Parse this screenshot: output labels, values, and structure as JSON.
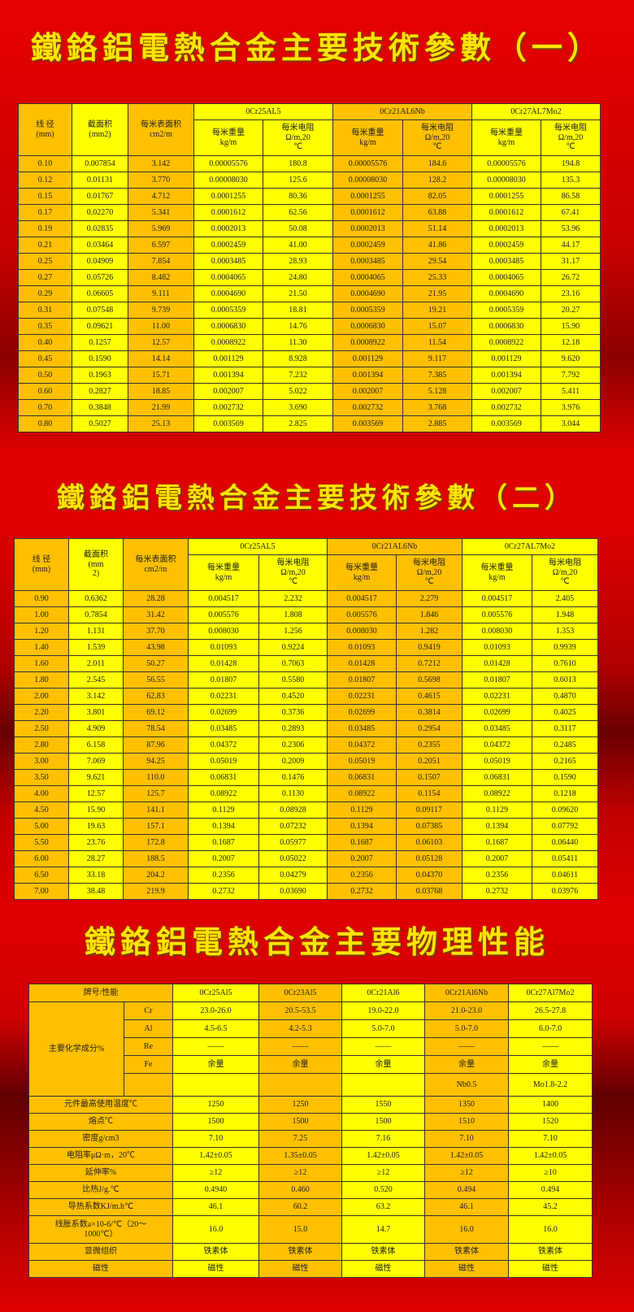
{
  "titles": [
    "鐵鉻鋁電熱合金主要技術參數（一）",
    "鐵鉻鋁電熱合金主要技術參數（二）",
    "鐵鉻鋁電熱合金主要物理性能"
  ],
  "colors": {
    "orange": "#ffc000",
    "yellow": "#ffff00",
    "title": "#ffe400",
    "background": "#e00000"
  },
  "table1": {
    "head": [
      "线 径\n(mm)",
      "截面积\n(mm2)",
      "每米表面积\ncm2/m"
    ],
    "groups": [
      "0Cr25AL5",
      "0Cr21AL6Nb",
      "0Cr27AL7Mo2"
    ],
    "sub": [
      "每米重量\nkg/m",
      "每米电阻\nΩ/m,20\n℃"
    ],
    "rows": [
      [
        "0.10",
        "0.007854",
        "3.142",
        "0.00005576",
        "180.8",
        "0.00005576",
        "184.6",
        "0.00005576",
        "194.8"
      ],
      [
        "0.12",
        "0.01131",
        "3.770",
        "0.00008030",
        "125.6",
        "0.00008030",
        "128.2",
        "0.00008030",
        "135.3"
      ],
      [
        "0.15",
        "0.01767",
        "4.712",
        "0.0001255",
        "80.36",
        "0.0001255",
        "82.05",
        "0.0001255",
        "86.58"
      ],
      [
        "0.17",
        "0.02270",
        "5.341",
        "0.0001612",
        "62.56",
        "0.0001612",
        "63.88",
        "0.0001612",
        "67.41"
      ],
      [
        "0.19",
        "0.02835",
        "5.969",
        "0.0002013",
        "50.08",
        "0.0002013",
        "51.14",
        "0.0002013",
        "53.96"
      ],
      [
        "0.21",
        "0.03464",
        "6.597",
        "0.0002459",
        "41.00",
        "0.0002459",
        "41.86",
        "0.0002459",
        "44.17"
      ],
      [
        "0.25",
        "0.04909",
        "7.854",
        "0.0003485",
        "28.93",
        "0.0003485",
        "29.54",
        "0.0003485",
        "31.17"
      ],
      [
        "0.27",
        "0.05726",
        "8.482",
        "0.0004065",
        "24.80",
        "0.0004065",
        "25.33",
        "0.0004065",
        "26.72"
      ],
      [
        "0.29",
        "0.06605",
        "9.111",
        "0.0004690",
        "21.50",
        "0.0004690",
        "21.95",
        "0.0004690",
        "23.16"
      ],
      [
        "0.31",
        "0.07548",
        "9.739",
        "0.0005359",
        "18.81",
        "0.0005359",
        "19.21",
        "0.0005359",
        "20.27"
      ],
      [
        "0.35",
        "0.09621",
        "11.00",
        "0.0006830",
        "14.76",
        "0.0006830",
        "15.07",
        "0.0006830",
        "15.90"
      ],
      [
        "0.40",
        "0.1257",
        "12.57",
        "0.0008922",
        "11.30",
        "0.0008922",
        "11.54",
        "0.0008922",
        "12.18"
      ],
      [
        "0.45",
        "0.1590",
        "14.14",
        "0.001129",
        "8.928",
        "0.001129",
        "9.117",
        "0.001129",
        "9.620"
      ],
      [
        "0.50",
        "0.1963",
        "15.71",
        "0.001394",
        "7.232",
        "0.001394",
        "7.385",
        "0.001394",
        "7.792"
      ],
      [
        "0.60",
        "0.2827",
        "18.85",
        "0.002007",
        "5.022",
        "0.002007",
        "5.128",
        "0.002007",
        "5.411"
      ],
      [
        "0.70",
        "0.3848",
        "21.99",
        "0.002732",
        "3.690",
        "0.002732",
        "3.768",
        "0.002732",
        "3.976"
      ],
      [
        "0.80",
        "0.5027",
        "25.13",
        "0.003569",
        "2.825",
        "0.003569",
        "2.885",
        "0.003569",
        "3.044"
      ]
    ]
  },
  "table2": {
    "head": [
      "线 径\n(mm)",
      "截面积\n(mm\n2)",
      "每米表面积\ncm2/m"
    ],
    "groups": [
      "0Cr25AL5",
      "0Cr21AL6Nb",
      "0Cr27AL7Mo2"
    ],
    "sub": [
      "每米重量\nkg/m",
      "每米电阻\nΩ/m,20\n℃"
    ],
    "rows": [
      [
        "0.90",
        "0.6362",
        "28.28",
        "0.004517",
        "2.232",
        "0.004517",
        "2.279",
        "0.004517",
        "2.405"
      ],
      [
        "1.00",
        "0.7854",
        "31.42",
        "0.005576",
        "1.808",
        "0.005576",
        "1.846",
        "0.005576",
        "1.948"
      ],
      [
        "1.20",
        "1.131",
        "37.70",
        "0.008030",
        "1.256",
        "0.008030",
        "1.282",
        "0.008030",
        "1.353"
      ],
      [
        "1.40",
        "1.539",
        "43.98",
        "0.01093",
        "0.9224",
        "0.01093",
        "0.9419",
        "0.01093",
        "0.9939"
      ],
      [
        "1.60",
        "2.011",
        "50.27",
        "0.01428",
        "0.7063",
        "0.01428",
        "0.7212",
        "0.01428",
        "0.7610"
      ],
      [
        "1.80",
        "2.545",
        "56.55",
        "0.01807",
        "0.5580",
        "0.01807",
        "0.5698",
        "0.01807",
        "0.6013"
      ],
      [
        "2.00",
        "3.142",
        "62.83",
        "0.02231",
        "0.4520",
        "0.02231",
        "0.4615",
        "0.02231",
        "0.4870"
      ],
      [
        "2.20",
        "3.801",
        "69.12",
        "0.02699",
        "0.3736",
        "0.02699",
        "0.3814",
        "0.02699",
        "0.4025"
      ],
      [
        "2.50",
        "4.909",
        "78.54",
        "0.03485",
        "0.2893",
        "0.03485",
        "0.2954",
        "0.03485",
        "0.3117"
      ],
      [
        "2.80",
        "6.158",
        "87.96",
        "0.04372",
        "0.2306",
        "0.04372",
        "0.2355",
        "0.04372",
        "0.2485"
      ],
      [
        "3.00",
        "7.069",
        "94.25",
        "0.05019",
        "0.2009",
        "0.05019",
        "0.2051",
        "0.05019",
        "0.2165"
      ],
      [
        "3.50",
        "9.621",
        "110.0",
        "0.06831",
        "0.1476",
        "0.06831",
        "0.1507",
        "0.06831",
        "0.1590"
      ],
      [
        "4.00",
        "12.57",
        "125.7",
        "0.08922",
        "0.1130",
        "0.08922",
        "0.1154",
        "0.08922",
        "0.1218"
      ],
      [
        "4.50",
        "15.90",
        "141.1",
        "0.1129",
        "0.08928",
        "0.1129",
        "0.09117",
        "0.1129",
        "0.09620"
      ],
      [
        "5.00",
        "19.63",
        "157.1",
        "0.1394",
        "0.07232",
        "0.1394",
        "0.07385",
        "0.1394",
        "0.07792"
      ],
      [
        "5.50",
        "23.76",
        "172.8",
        "0.1687",
        "0.05977",
        "0.1687",
        "0.06103",
        "0.1687",
        "0.06440"
      ],
      [
        "6.00",
        "28.27",
        "188.5",
        "0.2007",
        "0.05022",
        "0.2007",
        "0.05128",
        "0.2007",
        "0.05411"
      ],
      [
        "6.50",
        "33.18",
        "204.2",
        "0.2356",
        "0.04279",
        "0.2356",
        "0.04370",
        "0.2356",
        "0.04611"
      ],
      [
        "7.00",
        "38.48",
        "219.9",
        "0.2732",
        "0.03690",
        "0.2732",
        "0.03768",
        "0.2732",
        "0.03976"
      ]
    ]
  },
  "table3": {
    "corner": "牌号/性能",
    "grades": [
      "0Cr25Al5",
      "0Cr23Al5",
      "0Cr21Al6",
      "0Cr21Al6Nb",
      "0Cr27Al7Mo2"
    ],
    "chem_label": "主要化学成分%",
    "chem_rows": [
      {
        "el": "Cr",
        "v": [
          "23.0-26.0",
          "20.5-53.5",
          "19.0-22.0",
          "21.0-23.0",
          "26.5-27.8"
        ]
      },
      {
        "el": "Al",
        "v": [
          "4.5-6.5",
          "4.2-5.3",
          "5.0-7.0",
          "5.0-7.0",
          "6.0-7.0"
        ]
      },
      {
        "el": "Re",
        "v": [
          "——",
          "——",
          "——",
          "——",
          "——"
        ]
      },
      {
        "el": "Fe",
        "v": [
          "余量",
          "余量",
          "余量",
          "余量",
          "余量"
        ]
      },
      {
        "el": "",
        "v": [
          "",
          "",
          "",
          "Nb0.5",
          "Mo1.8-2.2"
        ]
      }
    ],
    "rows": [
      {
        "label": "元件最高使用温度℃",
        "v": [
          "1250",
          "1250",
          "1550",
          "1350",
          "1400"
        ]
      },
      {
        "label": "熔点℃",
        "v": [
          "1500",
          "1500",
          "1500",
          "1510",
          "1520"
        ]
      },
      {
        "label": "密度g/cm3",
        "v": [
          "7.10",
          "7.25",
          "7.16",
          "7.10",
          "7.10"
        ]
      },
      {
        "label": "电阻率μΩ·m，20℃",
        "v": [
          "1.42±0.05",
          "1.35±0.05",
          "1.42±0.05",
          "1.42±0.05",
          "1.42±0.05"
        ]
      },
      {
        "label": "延伸率%",
        "v": [
          "≥12",
          "≥12",
          "≥12",
          "≥12",
          "≥10"
        ]
      },
      {
        "label": "比热J/g.℃",
        "v": [
          "0.4940",
          "0.460",
          "0.520",
          "0.494",
          "0.494"
        ]
      },
      {
        "label": "导热系数KJ/m.h℃",
        "v": [
          "46.1",
          "60.2",
          "63.2",
          "46.1",
          "45.2"
        ]
      },
      {
        "label": "线胀系数a×10-6/℃（20～\n1000℃）",
        "v": [
          "16.0",
          "15.0",
          "14.7",
          "16.0",
          "16.0"
        ]
      },
      {
        "label": "显微组织",
        "v": [
          "铁素体",
          "铁素体",
          "铁素体",
          "铁素体",
          "铁素体"
        ]
      },
      {
        "label": "磁性",
        "v": [
          "磁性",
          "磁性",
          "磁性",
          "磁性",
          "磁性"
        ]
      }
    ]
  }
}
